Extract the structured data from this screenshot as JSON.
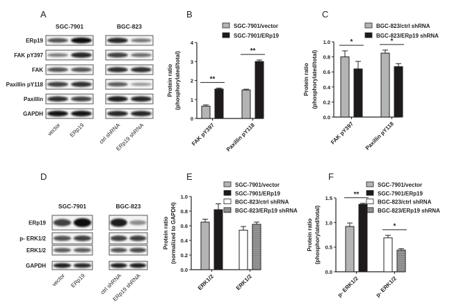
{
  "blots": [
    {
      "panel": "A",
      "groups": [
        "SGC-7901",
        "BGC-823"
      ],
      "rows": [
        "ERp19",
        "FAK pY397",
        "FAK",
        "Paxillin pY118",
        "Paxillin",
        "GAPDH"
      ],
      "lanes": [
        "vector",
        "ERp19",
        "ctrl shRNA",
        "ERp19 shRNA"
      ],
      "band_intensity": [
        [
          0.6,
          1.0,
          0.85,
          0.4
        ],
        [
          0.35,
          0.85,
          0.7,
          0.45
        ],
        [
          0.6,
          0.6,
          0.8,
          0.8
        ],
        [
          0.7,
          0.8,
          0.55,
          0.2
        ],
        [
          0.8,
          0.7,
          0.9,
          0.85
        ],
        [
          0.95,
          0.95,
          0.85,
          0.85
        ]
      ]
    },
    {
      "panel": "D",
      "groups": [
        "SGC-7901",
        "BGC-823"
      ],
      "rows": [
        "ERp19",
        "p- ERK1/2",
        "ERK1/2",
        "GAPDH"
      ],
      "lanes": [
        "vector",
        "ERp19",
        "ctrl shRNA",
        "ERp19 shRNA"
      ],
      "band_intensity": [
        [
          0.7,
          1.0,
          0.9,
          0.25
        ],
        [
          0.6,
          0.7,
          0.7,
          0.7
        ],
        [
          0.55,
          0.55,
          0.6,
          0.65
        ],
        [
          0.9,
          0.85,
          0.9,
          0.9
        ]
      ]
    }
  ],
  "chart_data": [
    {
      "panel": "B",
      "type": "bar",
      "categories": [
        "FAK pY397",
        "Paxillin pY118"
      ],
      "series": [
        {
          "name": "SGC-7901/vector",
          "values": [
            0.65,
            1.5
          ],
          "errors": [
            0.06,
            0.04
          ],
          "color": "#b4b4b4"
        },
        {
          "name": "SGC-7901/ERp19",
          "values": [
            1.55,
            3.0
          ],
          "errors": [
            0.05,
            0.08
          ],
          "color": "#1e1a1a"
        }
      ],
      "significance": [
        "**",
        "**"
      ],
      "ylabel": [
        "Protein ratio",
        "(phosphorylated/total)"
      ],
      "ylim": [
        0,
        4
      ],
      "yticks": [
        "0",
        "1",
        "2",
        "3",
        "4"
      ],
      "grid": false,
      "legend": "top"
    },
    {
      "panel": "C",
      "type": "bar",
      "categories": [
        "FAK pY397",
        "Paxillin pY118"
      ],
      "series": [
        {
          "name": "BGC-823/ctrl shRNA",
          "values": [
            0.8,
            0.85
          ],
          "errors": [
            0.08,
            0.04
          ],
          "color": "#b4b4b4"
        },
        {
          "name": "BGC-823/ERp19 shRNA",
          "values": [
            0.64,
            0.67
          ],
          "errors": [
            0.1,
            0.04
          ],
          "color": "#1e1a1a"
        }
      ],
      "significance": [
        "*",
        "*"
      ],
      "ylabel": [
        "Protein ratio",
        "(phosphorylated/total)"
      ],
      "ylim": [
        0,
        1.0
      ],
      "yticks": [
        "0.0",
        "0.2",
        "0.4",
        "0.6",
        "0.8",
        "1.0"
      ],
      "grid": false,
      "legend": "top"
    },
    {
      "panel": "E",
      "type": "bar",
      "categories": [
        "ERK1/2",
        "ERK1/2"
      ],
      "series": [
        {
          "name": "SGC-7901/vector",
          "values": [
            0.65,
            null
          ],
          "errors": [
            0.04,
            null
          ],
          "color": "#b4b4b4"
        },
        {
          "name": "SGC-7901/ERp19",
          "values": [
            0.82,
            null
          ],
          "errors": [
            0.08,
            null
          ],
          "color": "#1e1a1a"
        },
        {
          "name": "BGC-823/ctrl shRNA",
          "values": [
            null,
            0.54
          ],
          "errors": [
            null,
            0.05
          ],
          "color": "#ffffff"
        },
        {
          "name": "BGC-823/ERp19 shRNA",
          "values": [
            null,
            0.62
          ],
          "errors": [
            null,
            0.03
          ],
          "color": "#8a8a8a"
        }
      ],
      "significance": [
        "",
        ""
      ],
      "ylabel": [
        "Protein ratio",
        "(normalized to GAPDH)"
      ],
      "ylim": [
        0,
        1.0
      ],
      "yticks": [
        "0.0",
        "0.2",
        "0.4",
        "0.6",
        "0.8",
        "1.0"
      ],
      "grid": false,
      "legend": "top-right"
    },
    {
      "panel": "F",
      "type": "bar",
      "categories": [
        "p- ERK1/2",
        "p- ERK1/2"
      ],
      "series": [
        {
          "name": "SGC-7901/vector",
          "values": [
            0.92,
            null
          ],
          "errors": [
            0.07,
            null
          ],
          "color": "#b4b4b4"
        },
        {
          "name": "SGC-7901/ERp19",
          "values": [
            1.37,
            null
          ],
          "errors": [
            0.02,
            null
          ],
          "color": "#1e1a1a"
        },
        {
          "name": "BGC-823/ctrl shRNA",
          "values": [
            null,
            0.69
          ],
          "errors": [
            null,
            0.05
          ],
          "color": "#ffffff"
        },
        {
          "name": "BGC-823/ERp19 shRNA",
          "values": [
            null,
            0.44
          ],
          "errors": [
            null,
            0.03
          ],
          "color": "#8a8a8a"
        }
      ],
      "significance": [
        "**",
        "*"
      ],
      "ylabel": [
        "Protein ratio",
        "(phosphorylated/total)"
      ],
      "ylim": [
        0,
        1.5
      ],
      "yticks": [
        "0.0",
        "0.5",
        "1.0",
        "1.5"
      ],
      "grid": false,
      "legend": "top-right"
    }
  ]
}
